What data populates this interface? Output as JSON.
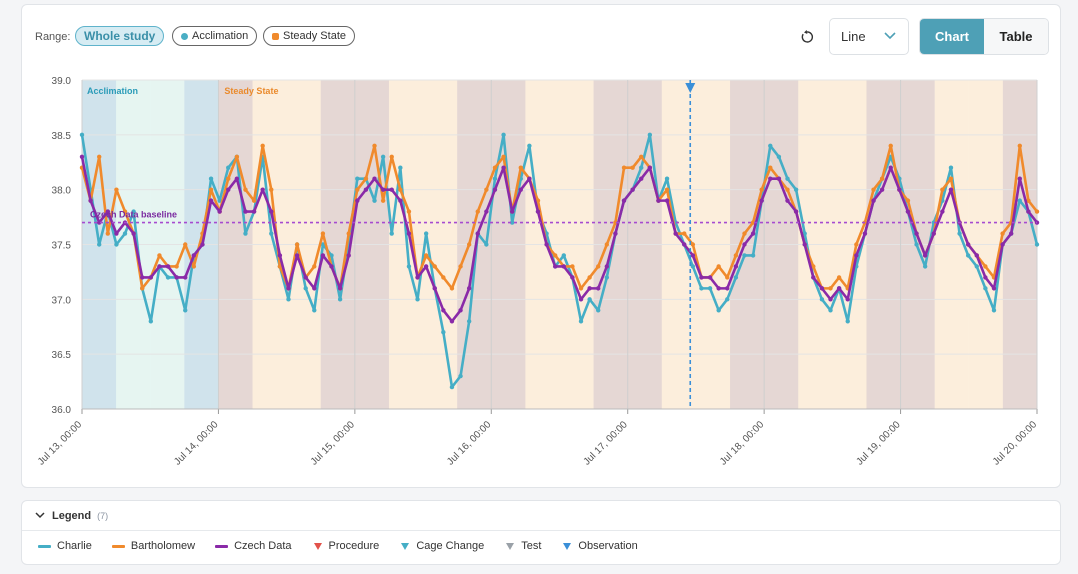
{
  "toolbar": {
    "range_label": "Range:",
    "range_options": [
      {
        "label": "Whole study",
        "active": true
      },
      {
        "label": "Acclimation",
        "color": "#4aaec4"
      },
      {
        "label": "Steady State",
        "color": "#f08a2c"
      }
    ],
    "reset_icon": "reset-icon",
    "view_select": {
      "value": "Line",
      "icon": "chevron-down-icon"
    },
    "tabs": [
      {
        "label": "Chart",
        "active": true
      },
      {
        "label": "Table",
        "active": false
      }
    ]
  },
  "legend": {
    "title": "Legend",
    "count": "(7)",
    "items": [
      {
        "label": "Charlie",
        "kind": "line",
        "color": "#45aec6"
      },
      {
        "label": "Bartholomew",
        "kind": "line",
        "color": "#f08a2c"
      },
      {
        "label": "Czech Data",
        "kind": "line",
        "color": "#8a2aa8"
      },
      {
        "label": "Procedure",
        "kind": "triangle",
        "color": "#e2524a"
      },
      {
        "label": "Cage Change",
        "kind": "triangle",
        "color": "#45aec6"
      },
      {
        "label": "Test",
        "kind": "triangle",
        "color": "#9aa1a8"
      },
      {
        "label": "Observation",
        "kind": "triangle",
        "color": "#3a8fd8"
      }
    ]
  },
  "chart_data": {
    "type": "line",
    "title": "",
    "xlabel": "",
    "ylabel": "",
    "ylim": [
      36.0,
      39.0
    ],
    "yticks": [
      "39.0",
      "38.5",
      "38.0",
      "37.5",
      "37.0",
      "36.5",
      "36.0"
    ],
    "xticks": [
      "Jul 13, 00:00",
      "Jul 14, 00:00",
      "Jul 15, 00:00",
      "Jul 16, 00:00",
      "Jul 17, 00:00",
      "Jul 18, 00:00",
      "Jul 19, 00:00",
      "Jul 20, 00:00"
    ],
    "x_start": "Jul 13, 00:00",
    "x_end": "Jul 20, 00:00",
    "grid": true,
    "phases": [
      {
        "label": "Acclimation",
        "start": "Jul 13, 00:00",
        "end": "Jul 14, 00:00",
        "color": "#2a9bb8"
      },
      {
        "label": "Steady State",
        "start": "Jul 14, 00:00",
        "end": "Jul 20, 00:00",
        "color": "#ea8a2c"
      }
    ],
    "baseline": {
      "label": "Czech Data baseline",
      "value": 37.7,
      "color": "#a64bd0"
    },
    "observation_marker": {
      "x": "Jul 17, 11:00",
      "color": "#3a8fd8"
    },
    "series": [
      {
        "name": "Charlie",
        "color": "#45aec6",
        "values": [
          38.5,
          38.0,
          37.5,
          37.8,
          37.5,
          37.6,
          37.8,
          37.1,
          36.8,
          37.3,
          37.2,
          37.2,
          36.9,
          37.4,
          37.5,
          38.1,
          37.9,
          38.2,
          38.3,
          37.6,
          37.8,
          38.3,
          37.6,
          37.3,
          37.0,
          37.5,
          37.1,
          36.9,
          37.5,
          37.4,
          37.0,
          37.5,
          38.1,
          38.1,
          37.9,
          38.3,
          37.6,
          38.2,
          37.3,
          37.0,
          37.6,
          37.1,
          36.7,
          36.2,
          36.3,
          36.8,
          37.6,
          37.5,
          38.1,
          38.5,
          37.7,
          38.1,
          38.4,
          37.8,
          37.6,
          37.3,
          37.4,
          37.2,
          36.8,
          37.0,
          36.9,
          37.2,
          37.6,
          37.9,
          38.0,
          38.2,
          38.5,
          37.9,
          38.1,
          37.7,
          37.5,
          37.3,
          37.1,
          37.1,
          36.9,
          37.0,
          37.2,
          37.4,
          37.4,
          37.9,
          38.4,
          38.3,
          38.1,
          38.0,
          37.6,
          37.2,
          37.0,
          36.9,
          37.1,
          36.8,
          37.3,
          37.6,
          37.9,
          38.1,
          38.3,
          38.1,
          37.8,
          37.5,
          37.3,
          37.7,
          37.9,
          38.2,
          37.6,
          37.4,
          37.3,
          37.1,
          36.9,
          37.5,
          37.6,
          37.9,
          37.8,
          37.5
        ],
        "_note": "values sampled at regular intervals across the full time range"
      },
      {
        "name": "Bartholomew",
        "color": "#f08a2c",
        "values": [
          38.2,
          37.9,
          38.3,
          37.6,
          38.0,
          37.8,
          37.6,
          37.1,
          37.2,
          37.4,
          37.3,
          37.3,
          37.5,
          37.3,
          37.6,
          38.0,
          37.8,
          38.1,
          38.3,
          38.0,
          37.9,
          38.4,
          38.0,
          37.3,
          37.1,
          37.5,
          37.2,
          37.3,
          37.6,
          37.3,
          37.1,
          37.6,
          38.0,
          38.1,
          38.4,
          37.9,
          38.3,
          38.0,
          37.8,
          37.2,
          37.4,
          37.3,
          37.2,
          37.1,
          37.3,
          37.5,
          37.8,
          38.0,
          38.2,
          38.3,
          37.8,
          38.2,
          38.1,
          37.9,
          37.5,
          37.4,
          37.3,
          37.3,
          37.1,
          37.2,
          37.3,
          37.5,
          37.7,
          38.2,
          38.2,
          38.3,
          38.2,
          37.9,
          38.0,
          37.6,
          37.6,
          37.5,
          37.2,
          37.2,
          37.3,
          37.2,
          37.4,
          37.6,
          37.7,
          38.0,
          38.2,
          38.1,
          38.0,
          37.8,
          37.5,
          37.3,
          37.1,
          37.1,
          37.2,
          37.1,
          37.5,
          37.7,
          38.0,
          38.1,
          38.4,
          38.0,
          37.9,
          37.6,
          37.4,
          37.6,
          38.0,
          38.1,
          37.7,
          37.5,
          37.4,
          37.3,
          37.2,
          37.6,
          37.7,
          38.4,
          37.9,
          37.8
        ],
        "_note": "values sampled at regular intervals across the full time range"
      },
      {
        "name": "Czech Data",
        "color": "#8a2aa8",
        "values": [
          38.3,
          37.9,
          37.7,
          37.8,
          37.6,
          37.7,
          37.6,
          37.2,
          37.2,
          37.3,
          37.3,
          37.2,
          37.2,
          37.4,
          37.5,
          37.9,
          37.8,
          38.0,
          38.1,
          37.8,
          37.8,
          38.0,
          37.8,
          37.4,
          37.1,
          37.4,
          37.2,
          37.1,
          37.4,
          37.3,
          37.1,
          37.4,
          37.9,
          38.0,
          38.1,
          38.0,
          38.0,
          37.9,
          37.6,
          37.2,
          37.3,
          37.1,
          36.9,
          36.8,
          36.9,
          37.1,
          37.6,
          37.8,
          38.0,
          38.2,
          37.8,
          38.0,
          38.1,
          37.8,
          37.5,
          37.3,
          37.3,
          37.2,
          37.0,
          37.1,
          37.1,
          37.3,
          37.6,
          37.9,
          38.0,
          38.1,
          38.2,
          37.9,
          37.9,
          37.6,
          37.5,
          37.4,
          37.2,
          37.2,
          37.1,
          37.1,
          37.3,
          37.5,
          37.6,
          37.9,
          38.1,
          38.1,
          37.9,
          37.8,
          37.5,
          37.2,
          37.1,
          37.0,
          37.1,
          37.0,
          37.4,
          37.6,
          37.9,
          38.0,
          38.2,
          38.0,
          37.8,
          37.6,
          37.4,
          37.6,
          37.8,
          38.0,
          37.7,
          37.5,
          37.4,
          37.2,
          37.1,
          37.5,
          37.6,
          38.1,
          37.8,
          37.7
        ],
        "_note": "values sampled at regular intervals across the full time range"
      }
    ]
  }
}
